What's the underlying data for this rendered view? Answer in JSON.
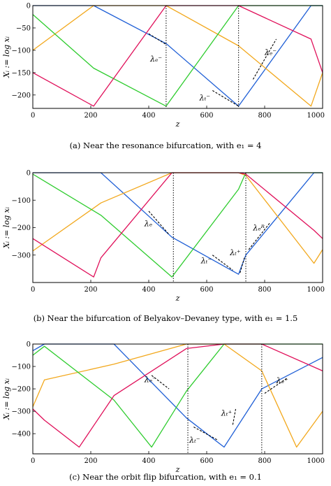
{
  "chart_data": [
    {
      "type": "line",
      "caption": "(a)  Near the resonance bifurcation, with e₁ = 4",
      "xlabel": "z",
      "ylabel": "Xᵢ := log xᵢ",
      "xlim": [
        0,
        1000
      ],
      "ylim": [
        -230,
        0
      ],
      "xticks": [
        0,
        200,
        400,
        600,
        800,
        1000
      ],
      "yticks": [
        0,
        -50,
        -100,
        -150,
        -200
      ],
      "grid": false,
      "series": [
        {
          "color": "#1f5fd6",
          "x": [
            0,
            210,
            460,
            710,
            960,
            1000
          ],
          "y": [
            0,
            0,
            -85,
            -225,
            0,
            0
          ]
        },
        {
          "color": "#f2a81d",
          "x": [
            0,
            210,
            460,
            710,
            960,
            1000
          ],
          "y": [
            -100,
            0,
            0,
            -90,
            -225,
            -150
          ]
        },
        {
          "color": "#2ecc2e",
          "x": [
            0,
            210,
            460,
            710,
            960,
            1000
          ],
          "y": [
            -20,
            -140,
            -225,
            0,
            0,
            0
          ]
        },
        {
          "color": "#e0105a",
          "x": [
            0,
            210,
            460,
            710,
            960,
            1000
          ],
          "y": [
            -150,
            -225,
            0,
            0,
            -75,
            -150
          ]
        }
      ],
      "vlines": [
        460,
        710
      ],
      "annotations": [
        {
          "text": "λₑ⁻",
          "x": 405,
          "y": -125,
          "seg": [
            [
              400,
              -63
            ],
            [
              460,
              -87
            ]
          ]
        },
        {
          "text": "λₜ⁻",
          "x": 575,
          "y": -212,
          "seg": [
            [
              620,
              -190
            ],
            [
              710,
              -225
            ]
          ]
        },
        {
          "text": "λₑ⁻",
          "x": 800,
          "y": -110,
          "seg": [
            [
              760,
              -165
            ],
            [
              840,
              -75
            ]
          ]
        }
      ]
    },
    {
      "type": "line",
      "caption": "(b)  Near the bifurcation of Belyakov–Devaney type, with e₁ = 1.5",
      "xlabel": "z",
      "ylabel": "Xᵢ := log xᵢ",
      "xlim": [
        0,
        1000
      ],
      "ylim": [
        -400,
        0
      ],
      "xticks": [
        0,
        200,
        400,
        600,
        800,
        1000
      ],
      "yticks": [
        0,
        -100,
        -200,
        -300
      ],
      "grid": false,
      "series": [
        {
          "color": "#1f5fd6",
          "x": [
            0,
            235,
            480,
            710,
            735,
            970,
            1000
          ],
          "y": [
            0,
            0,
            -235,
            -370,
            -300,
            0,
            0
          ]
        },
        {
          "color": "#f2a81d",
          "x": [
            0,
            235,
            480,
            710,
            735,
            970,
            1000
          ],
          "y": [
            -285,
            -110,
            0,
            0,
            -10,
            -330,
            -280
          ]
        },
        {
          "color": "#2ecc2e",
          "x": [
            0,
            235,
            480,
            710,
            735,
            970,
            1000
          ],
          "y": [
            -5,
            -155,
            -380,
            -60,
            0,
            0,
            0
          ]
        },
        {
          "color": "#e0105a",
          "x": [
            0,
            210,
            235,
            480,
            710,
            735,
            970,
            1000
          ],
          "y": [
            -240,
            -380,
            -310,
            0,
            0,
            -5,
            -210,
            -240
          ]
        }
      ],
      "vlines": [
        485,
        735
      ],
      "annotations": [
        {
          "text": "λₑ",
          "x": 385,
          "y": -195,
          "seg": [
            [
              400,
              -140
            ],
            [
              470,
              -225
            ]
          ]
        },
        {
          "text": "λₜ⁻",
          "x": 580,
          "y": -330,
          "seg": [
            [
              620,
              -300
            ],
            [
              690,
              -355
            ]
          ]
        },
        {
          "text": "λₜ⁺",
          "x": 680,
          "y": -300,
          "seg": [
            [
              715,
              -365
            ],
            [
              730,
              -310
            ]
          ]
        },
        {
          "text": "λₑᴿ",
          "x": 760,
          "y": -210,
          "seg": [
            [
              745,
              -280
            ],
            [
              820,
              -180
            ]
          ]
        }
      ]
    },
    {
      "type": "line",
      "caption": "(c) Near the orbit flip bifurcation, with e₁ = 0.1",
      "xlabel": "z",
      "ylabel": "Xᵢ := log xᵢ",
      "xlim": [
        0,
        1000
      ],
      "ylim": [
        -490,
        0
      ],
      "xticks": [
        0,
        200,
        400,
        600,
        800,
        1000
      ],
      "yticks": [
        0,
        -100,
        -200,
        -300,
        -400
      ],
      "grid": false,
      "series": [
        {
          "color": "#1f5fd6",
          "x": [
            0,
            40,
            280,
            530,
            660,
            790,
            1000
          ],
          "y": [
            -30,
            0,
            0,
            -330,
            -460,
            -200,
            -60
          ]
        },
        {
          "color": "#f2a81d",
          "x": [
            0,
            40,
            280,
            530,
            660,
            790,
            910,
            1000
          ],
          "y": [
            -280,
            -160,
            -90,
            0,
            0,
            -120,
            -460,
            -300
          ]
        },
        {
          "color": "#2ecc2e",
          "x": [
            0,
            40,
            280,
            410,
            530,
            660,
            790,
            1000
          ],
          "y": [
            -50,
            -10,
            -250,
            -460,
            -210,
            0,
            0,
            0
          ]
        },
        {
          "color": "#e0105a",
          "x": [
            0,
            40,
            160,
            280,
            530,
            660,
            790,
            1000
          ],
          "y": [
            -290,
            -340,
            -460,
            -230,
            -20,
            0,
            0,
            -120
          ]
        }
      ],
      "vlines": [
        535,
        790
      ],
      "annotations": [
        {
          "text": "λₑ⁻",
          "x": 385,
          "y": -170,
          "seg": [
            [
              410,
              -140
            ],
            [
              470,
              -200
            ]
          ]
        },
        {
          "text": "λₜ⁻",
          "x": 540,
          "y": -440,
          "seg": [
            [
              555,
              -370
            ],
            [
              640,
              -430
            ]
          ]
        },
        {
          "text": "λₜ⁺",
          "x": 650,
          "y": -320,
          "seg": [
            [
              690,
              -360
            ],
            [
              700,
              -290
            ]
          ]
        },
        {
          "text": "λₑ⁺",
          "x": 840,
          "y": -175,
          "seg": [
            [
              800,
              -220
            ],
            [
              880,
              -150
            ]
          ]
        }
      ]
    }
  ]
}
